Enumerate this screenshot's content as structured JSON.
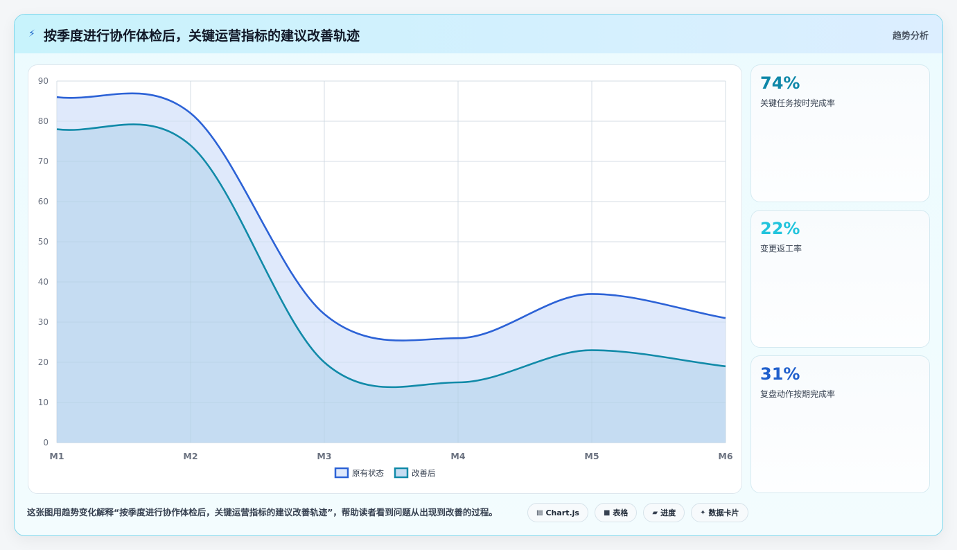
{
  "header": {
    "bolt_icon": "⚡",
    "title": "按季度进行协作体检后，关键运营指标的建议改善轨迹",
    "tag": "趋势分析"
  },
  "kpis": [
    {
      "value": "74%",
      "label": "关键任务按时完成率",
      "color": "#0e87a8"
    },
    {
      "value": "22%",
      "label": "变更返工率",
      "color": "#22c4dc"
    },
    {
      "value": "31%",
      "label": "复盘动作按期完成率",
      "color": "#1f5fcc"
    }
  ],
  "footer": {
    "description": "这张图用趋势变化解释“按季度进行协作体检后，关键运营指标的建议改善轨迹”，帮助读者看到问题从出现到改善的过程。",
    "chips": [
      {
        "icon": "▤",
        "label": "Chart.js"
      },
      {
        "icon": "■",
        "label": "表格"
      },
      {
        "icon": "▰",
        "label": "进度"
      },
      {
        "icon": "✦",
        "label": "数据卡片"
      }
    ]
  },
  "chart_data": {
    "type": "area",
    "x": [
      "M1",
      "M2",
      "M3",
      "M4",
      "M5",
      "M6"
    ],
    "ylim": [
      0,
      90
    ],
    "yticks": [
      0,
      10,
      20,
      30,
      40,
      50,
      60,
      70,
      80,
      90
    ],
    "grid": true,
    "legend": "bottom",
    "series": [
      {
        "name": "原有状态",
        "values": [
          86,
          82,
          32,
          26,
          37,
          31
        ],
        "color": "#2c62d6",
        "fill": "#dfe9fb"
      },
      {
        "name": "改善后",
        "values": [
          78,
          74,
          20,
          15,
          23,
          19
        ],
        "color": "#118aa8",
        "fill": "#c5dcf2"
      }
    ]
  }
}
